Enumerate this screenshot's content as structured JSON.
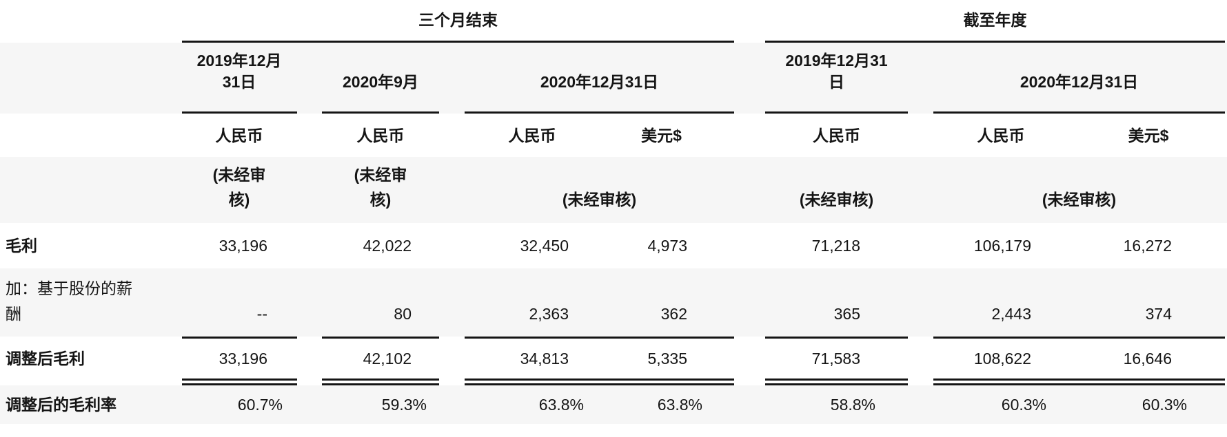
{
  "table": {
    "sections": {
      "quarter": {
        "title": "三个月结束"
      },
      "year": {
        "title": "截至年度"
      }
    },
    "columns": {
      "qA": {
        "date_lines": [
          "2019年12月",
          "31日"
        ],
        "currency": "人民币",
        "unaudited_lines": [
          "(未经审",
          "核)"
        ]
      },
      "qB": {
        "date_lines": [
          "2020年9月"
        ],
        "currency": "人民币",
        "unaudited_lines": [
          "(未经审",
          "核)"
        ]
      },
      "qC": {
        "date_lines": [
          "2020年12月31日"
        ],
        "unaudited_lines": [
          "(未经审核)"
        ]
      },
      "qC_rmb": {
        "currency": "人民币"
      },
      "qC_usd": {
        "currency": "美元$"
      },
      "yD": {
        "date_lines": [
          "2019年12月31",
          "日"
        ],
        "currency": "人民币",
        "unaudited_lines": [
          "(未经审核)"
        ]
      },
      "yE": {
        "date_lines": [
          "2020年12月31日"
        ],
        "unaudited_lines": [
          "(未经审核)"
        ]
      },
      "yE_rmb": {
        "currency": "人民币"
      },
      "yE_usd": {
        "currency": "美元$"
      }
    },
    "rows": [
      {
        "label_lines": [
          "毛利"
        ],
        "values": [
          "33,196",
          "42,022",
          "32,450",
          "4,973",
          "71,218",
          "106,179",
          "16,272"
        ]
      },
      {
        "label_lines": [
          "加：基于股份的薪",
          "酬"
        ],
        "values": [
          "--",
          "80",
          "2,363",
          "362",
          "365",
          "2,443",
          "374"
        ]
      },
      {
        "label_lines": [
          "调整后毛利"
        ],
        "values": [
          "33,196",
          "42,102",
          "34,813",
          "5,335",
          "71,583",
          "108,622",
          "16,646"
        ]
      },
      {
        "label_lines": [
          "调整后的毛利率"
        ],
        "values": [
          "60.7%",
          "59.3%",
          "63.8%",
          "63.8%",
          "58.8%",
          "60.3%",
          "60.3%"
        ]
      }
    ],
    "colors": {
      "stripe": "#f6f6f6",
      "rule": "#151515",
      "text": "#151515"
    }
  }
}
